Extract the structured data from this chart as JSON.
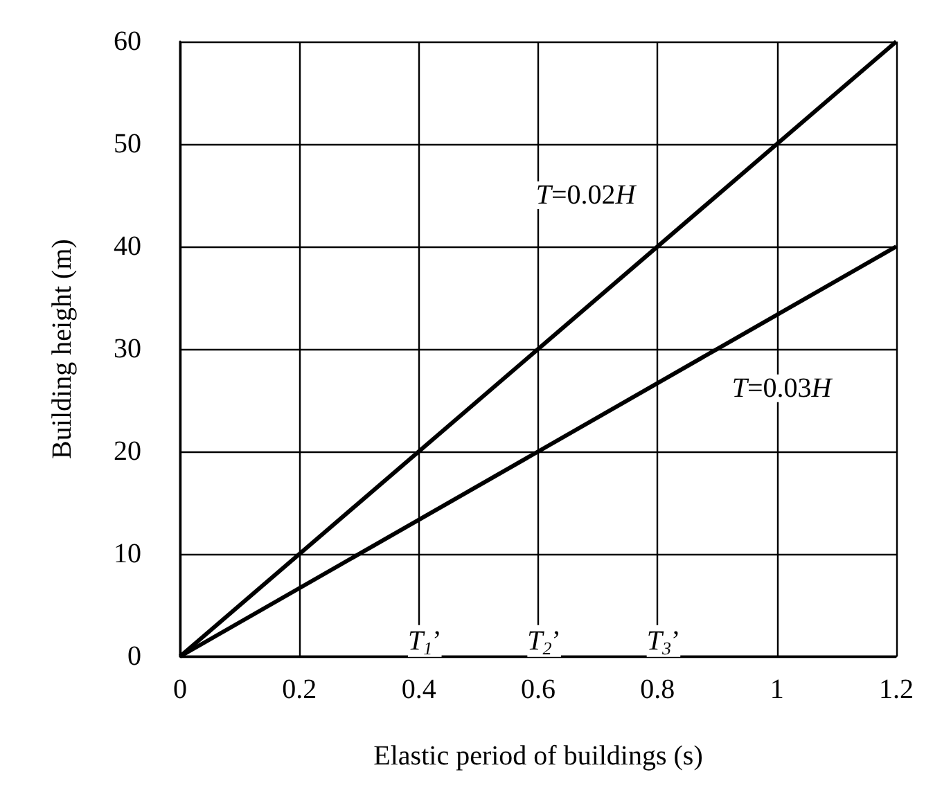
{
  "chart_data": {
    "type": "line",
    "xlabel": "Elastic period of buildings (s)",
    "ylabel": "Building height (m)",
    "x": [
      0,
      1.2
    ],
    "series": [
      {
        "name": "T=0.02H",
        "color": "#000000",
        "values": [
          0,
          60
        ]
      },
      {
        "name": "T=0.03H",
        "color": "#000000",
        "values": [
          0,
          40
        ]
      }
    ],
    "xlim": [
      0,
      1.2
    ],
    "xticks": [
      0,
      0.2,
      0.4,
      0.6,
      0.8,
      1,
      1.2
    ],
    "ylim": [
      0,
      60
    ],
    "yticks": [
      0,
      10,
      20,
      30,
      40,
      50,
      60
    ],
    "grid": true,
    "marker": "none",
    "line_style": "solid",
    "legend": false,
    "annotations": [
      {
        "text": "T$_{1}$’",
        "x": 0.41,
        "y": 1.5
      },
      {
        "text": "T$_{2}$’",
        "x": 0.61,
        "y": 1.5
      },
      {
        "text": "T$_{3}$’",
        "x": 0.81,
        "y": 1.5
      }
    ]
  }
}
